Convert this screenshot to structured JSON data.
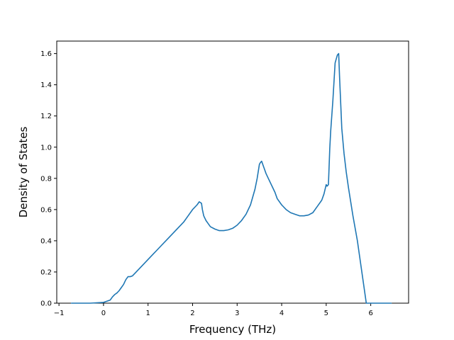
{
  "chart_data": {
    "type": "line",
    "title": "",
    "xlabel": "Frequency (THz)",
    "ylabel": "Density of States",
    "xlim": [
      -1.05,
      6.85
    ],
    "ylim": [
      0.0,
      1.68
    ],
    "xticks": [
      -1,
      0,
      1,
      2,
      3,
      4,
      5,
      6
    ],
    "xtick_labels": [
      "−1",
      "0",
      "1",
      "2",
      "3",
      "4",
      "5",
      "6"
    ],
    "yticks": [
      0.0,
      0.2,
      0.4,
      0.6,
      0.8,
      1.0,
      1.2,
      1.4,
      1.6
    ],
    "ytick_labels": [
      "0.0",
      "0.2",
      "0.4",
      "0.6",
      "0.8",
      "1.0",
      "1.2",
      "1.4",
      "1.6"
    ],
    "grid": false,
    "legend": "none",
    "line_color": "#1f77b4",
    "series": [
      {
        "x": [
          -0.72,
          -0.3,
          0.0,
          0.15,
          0.2,
          0.25,
          0.3,
          0.35,
          0.4,
          0.45,
          0.5,
          0.55,
          0.6,
          0.65,
          0.7,
          0.8,
          0.9,
          1.0,
          1.1,
          1.2,
          1.3,
          1.4,
          1.5,
          1.6,
          1.7,
          1.8,
          1.9,
          2.0,
          2.1,
          2.15,
          2.2,
          2.22,
          2.25,
          2.3,
          2.35,
          2.4,
          2.5,
          2.6,
          2.7,
          2.8,
          2.9,
          3.0,
          3.1,
          3.2,
          3.3,
          3.35,
          3.4,
          3.45,
          3.5,
          3.52,
          3.55,
          3.6,
          3.65,
          3.7,
          3.75,
          3.8,
          3.85,
          3.9,
          4.0,
          4.1,
          4.2,
          4.3,
          4.4,
          4.5,
          4.6,
          4.7,
          4.8,
          4.9,
          4.95,
          5.0,
          5.02,
          5.05,
          5.08,
          5.1,
          5.15,
          5.2,
          5.25,
          5.28,
          5.3,
          5.35,
          5.4,
          5.45,
          5.5,
          5.55,
          5.6,
          5.65,
          5.7,
          5.75,
          5.8,
          5.85,
          5.9,
          6.0,
          6.46
        ],
        "y": [
          0.0,
          0.0,
          0.005,
          0.02,
          0.04,
          0.055,
          0.065,
          0.08,
          0.1,
          0.12,
          0.15,
          0.17,
          0.17,
          0.175,
          0.19,
          0.22,
          0.25,
          0.28,
          0.31,
          0.34,
          0.37,
          0.4,
          0.43,
          0.46,
          0.49,
          0.52,
          0.56,
          0.6,
          0.63,
          0.65,
          0.64,
          0.6,
          0.56,
          0.53,
          0.51,
          0.49,
          0.475,
          0.465,
          0.465,
          0.47,
          0.48,
          0.5,
          0.53,
          0.57,
          0.63,
          0.68,
          0.73,
          0.8,
          0.89,
          0.9,
          0.91,
          0.87,
          0.83,
          0.8,
          0.77,
          0.74,
          0.71,
          0.67,
          0.63,
          0.6,
          0.58,
          0.57,
          0.56,
          0.56,
          0.565,
          0.58,
          0.62,
          0.66,
          0.7,
          0.76,
          0.75,
          0.76,
          0.99,
          1.1,
          1.3,
          1.54,
          1.59,
          1.6,
          1.45,
          1.12,
          0.96,
          0.84,
          0.74,
          0.65,
          0.56,
          0.48,
          0.4,
          0.3,
          0.2,
          0.1,
          0.0,
          0.0,
          0.0
        ]
      }
    ]
  }
}
